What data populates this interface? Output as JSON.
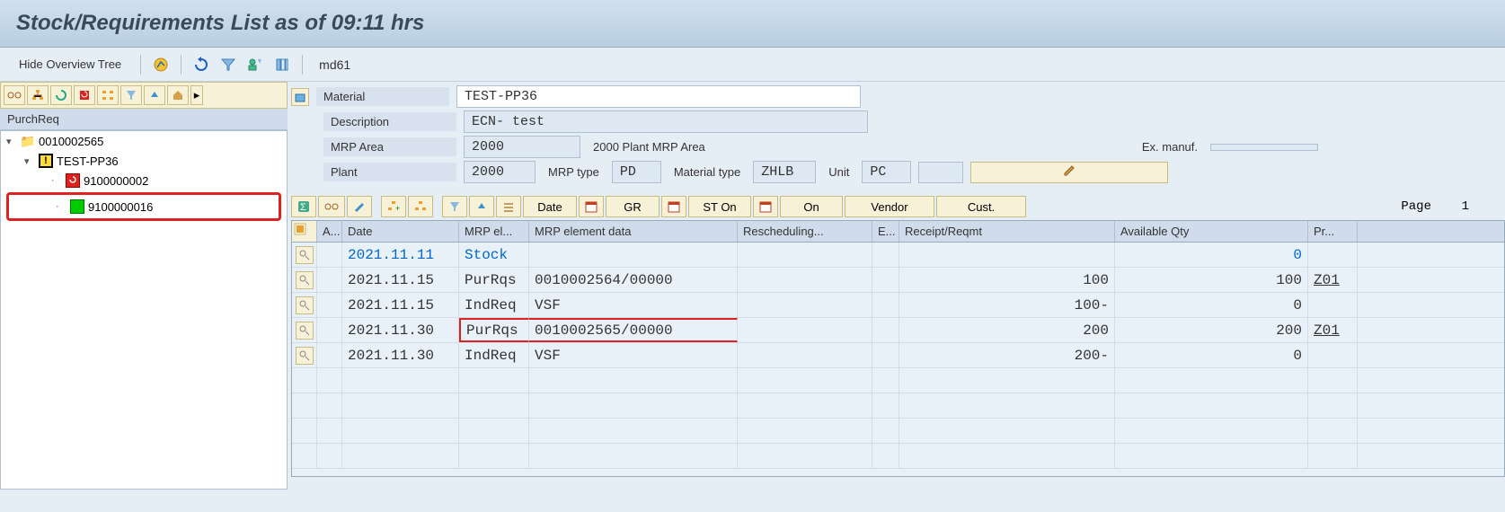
{
  "title": "Stock/Requirements List as of 09:11 hrs",
  "toolbar": {
    "hide_tree": "Hide Overview Tree",
    "command": "md61"
  },
  "tree": {
    "header": "PurchReq",
    "root": "0010002565",
    "child": "TEST-PP36",
    "leaf1": "9100000002",
    "leaf2": "9100000016"
  },
  "form": {
    "material_label": "Material",
    "material": "TEST-PP36",
    "description_label": "Description",
    "description": "ECN- test",
    "mrp_area_label": "MRP Area",
    "mrp_area": "2000",
    "mrp_area_text": "2000 Plant  MRP Area",
    "ex_manuf_label": "Ex. manuf.",
    "plant_label": "Plant",
    "plant": "2000",
    "mrp_type_label": "MRP type",
    "mrp_type": "PD",
    "mat_type_label": "Material type",
    "mat_type": "ZHLB",
    "unit_label": "Unit",
    "unit": "PC"
  },
  "grid_toolbar": {
    "date": "Date",
    "gr": "GR",
    "ston": "ST On",
    "on": "On",
    "vendor": "Vendor",
    "cust": "Cust.",
    "page_label": "Page",
    "page_no": "1"
  },
  "grid": {
    "headers": {
      "a": "A...",
      "date": "Date",
      "mrpel": "MRP el...",
      "mrpdata": "MRP element data",
      "resch": "Rescheduling...",
      "e": "E...",
      "recreq": "Receipt/Reqmt",
      "avail": "Available Qty",
      "pr": "Pr..."
    },
    "rows": [
      {
        "date": "2021.11.11",
        "mrpel": "Stock",
        "mrpdata": "",
        "resch": "",
        "e": "",
        "recreq": "",
        "avail": "0",
        "pr": "",
        "link": true
      },
      {
        "date": "2021.11.15",
        "mrpel": "PurRqs",
        "mrpdata": "0010002564/00000",
        "resch": "",
        "e": "",
        "recreq": "100",
        "avail": "100",
        "pr": "Z01"
      },
      {
        "date": "2021.11.15",
        "mrpel": "IndReq",
        "mrpdata": "VSF",
        "resch": "",
        "e": "",
        "recreq": "100-",
        "avail": "0",
        "pr": ""
      },
      {
        "date": "2021.11.30",
        "mrpel": "PurRqs",
        "mrpdata": "0010002565/00000",
        "resch": "",
        "e": "",
        "recreq": "200",
        "avail": "200",
        "pr": "Z01",
        "sel": true
      },
      {
        "date": "2021.11.30",
        "mrpel": "IndReq",
        "mrpdata": "VSF",
        "resch": "",
        "e": "",
        "recreq": "200-",
        "avail": "0",
        "pr": ""
      }
    ]
  },
  "colors": {
    "bg": "#e5edf5",
    "header_grad_top": "#d1e0ee",
    "header_grad_bot": "#b8cfe0",
    "toolbar_yellow": "#f7f1d8",
    "field_bg": "#dde8f2",
    "grid_header": "#d0dceb",
    "link": "#0066cc",
    "highlight": "#d22"
  }
}
